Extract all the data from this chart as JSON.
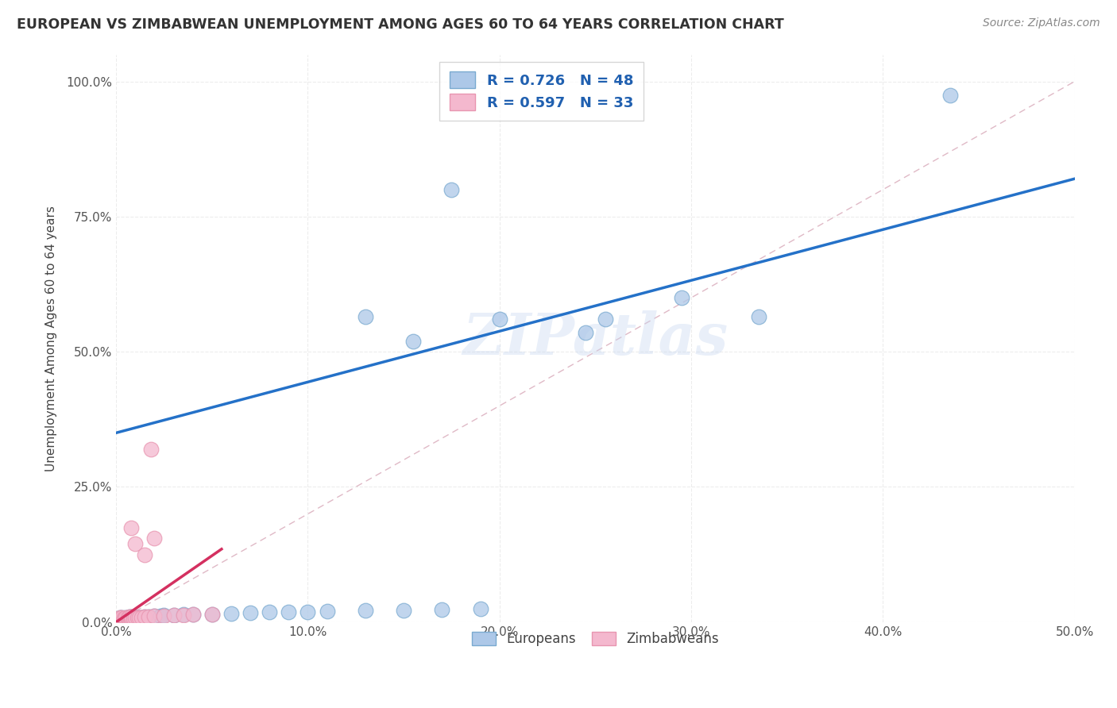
{
  "title": "EUROPEAN VS ZIMBABWEAN UNEMPLOYMENT AMONG AGES 60 TO 64 YEARS CORRELATION CHART",
  "source": "Source: ZipAtlas.com",
  "ylabel": "Unemployment Among Ages 60 to 64 years",
  "xlim": [
    0.0,
    0.5
  ],
  "ylim": [
    0.0,
    1.05
  ],
  "xticks": [
    0.0,
    0.1,
    0.2,
    0.3,
    0.4,
    0.5
  ],
  "xticklabels": [
    "0.0%",
    "10.0%",
    "20.0%",
    "30.0%",
    "40.0%",
    "50.0%"
  ],
  "yticks": [
    0.0,
    0.25,
    0.5,
    0.75,
    1.0
  ],
  "yticklabels": [
    "0.0%",
    "25.0%",
    "50.0%",
    "75.0%",
    "100.0%"
  ],
  "european_color": "#adc8e8",
  "zimbabwean_color": "#f4b8ce",
  "european_edge_color": "#7aaad0",
  "zimbabwean_edge_color": "#e895b0",
  "european_line_color": "#2471c8",
  "zimbabwean_line_color": "#d43060",
  "ref_line_color": "#d8a8b8",
  "legend_color": "#2060b0",
  "european_R": "0.726",
  "european_N": "48",
  "zimbabwean_R": "0.597",
  "zimbabwean_N": "33",
  "watermark": "ZIPatlas",
  "background_color": "#ffffff",
  "grid_color": "#e8e8e8",
  "eu_line_x0": 0.0,
  "eu_line_y0": 0.35,
  "eu_line_x1": 0.5,
  "eu_line_y1": 0.82,
  "zim_line_x0": 0.0,
  "zim_line_y0": 0.0,
  "zim_line_x1": 0.055,
  "zim_line_y1": 0.135,
  "european_points": [
    [
      0.001,
      0.005
    ],
    [
      0.002,
      0.005
    ],
    [
      0.002,
      0.008
    ],
    [
      0.003,
      0.005
    ],
    [
      0.003,
      0.008
    ],
    [
      0.004,
      0.005
    ],
    [
      0.004,
      0.007
    ],
    [
      0.005,
      0.005
    ],
    [
      0.005,
      0.008
    ],
    [
      0.006,
      0.006
    ],
    [
      0.006,
      0.009
    ],
    [
      0.007,
      0.006
    ],
    [
      0.007,
      0.01
    ],
    [
      0.008,
      0.006
    ],
    [
      0.008,
      0.01
    ],
    [
      0.009,
      0.007
    ],
    [
      0.01,
      0.008
    ],
    [
      0.011,
      0.008
    ],
    [
      0.012,
      0.009
    ],
    [
      0.013,
      0.009
    ],
    [
      0.015,
      0.01
    ],
    [
      0.017,
      0.01
    ],
    [
      0.02,
      0.011
    ],
    [
      0.023,
      0.012
    ],
    [
      0.025,
      0.013
    ],
    [
      0.03,
      0.013
    ],
    [
      0.035,
      0.014
    ],
    [
      0.04,
      0.015
    ],
    [
      0.05,
      0.015
    ],
    [
      0.06,
      0.016
    ],
    [
      0.07,
      0.017
    ],
    [
      0.08,
      0.018
    ],
    [
      0.09,
      0.018
    ],
    [
      0.1,
      0.019
    ],
    [
      0.11,
      0.02
    ],
    [
      0.13,
      0.021
    ],
    [
      0.15,
      0.022
    ],
    [
      0.17,
      0.023
    ],
    [
      0.19,
      0.024
    ],
    [
      0.13,
      0.565
    ],
    [
      0.155,
      0.52
    ],
    [
      0.2,
      0.56
    ],
    [
      0.245,
      0.535
    ],
    [
      0.255,
      0.56
    ],
    [
      0.295,
      0.6
    ],
    [
      0.175,
      0.8
    ],
    [
      0.335,
      0.565
    ],
    [
      0.435,
      0.975
    ]
  ],
  "zimbabwean_points": [
    [
      0.001,
      0.005
    ],
    [
      0.002,
      0.005
    ],
    [
      0.002,
      0.008
    ],
    [
      0.003,
      0.005
    ],
    [
      0.003,
      0.008
    ],
    [
      0.004,
      0.005
    ],
    [
      0.004,
      0.007
    ],
    [
      0.005,
      0.005
    ],
    [
      0.005,
      0.008
    ],
    [
      0.006,
      0.006
    ],
    [
      0.006,
      0.009
    ],
    [
      0.007,
      0.006
    ],
    [
      0.007,
      0.01
    ],
    [
      0.008,
      0.006
    ],
    [
      0.008,
      0.01
    ],
    [
      0.009,
      0.007
    ],
    [
      0.01,
      0.008
    ],
    [
      0.011,
      0.008
    ],
    [
      0.012,
      0.009
    ],
    [
      0.013,
      0.009
    ],
    [
      0.015,
      0.01
    ],
    [
      0.017,
      0.01
    ],
    [
      0.02,
      0.011
    ],
    [
      0.025,
      0.012
    ],
    [
      0.03,
      0.013
    ],
    [
      0.035,
      0.013
    ],
    [
      0.04,
      0.014
    ],
    [
      0.05,
      0.014
    ],
    [
      0.008,
      0.175
    ],
    [
      0.01,
      0.145
    ],
    [
      0.015,
      0.125
    ],
    [
      0.018,
      0.32
    ],
    [
      0.02,
      0.155
    ]
  ]
}
